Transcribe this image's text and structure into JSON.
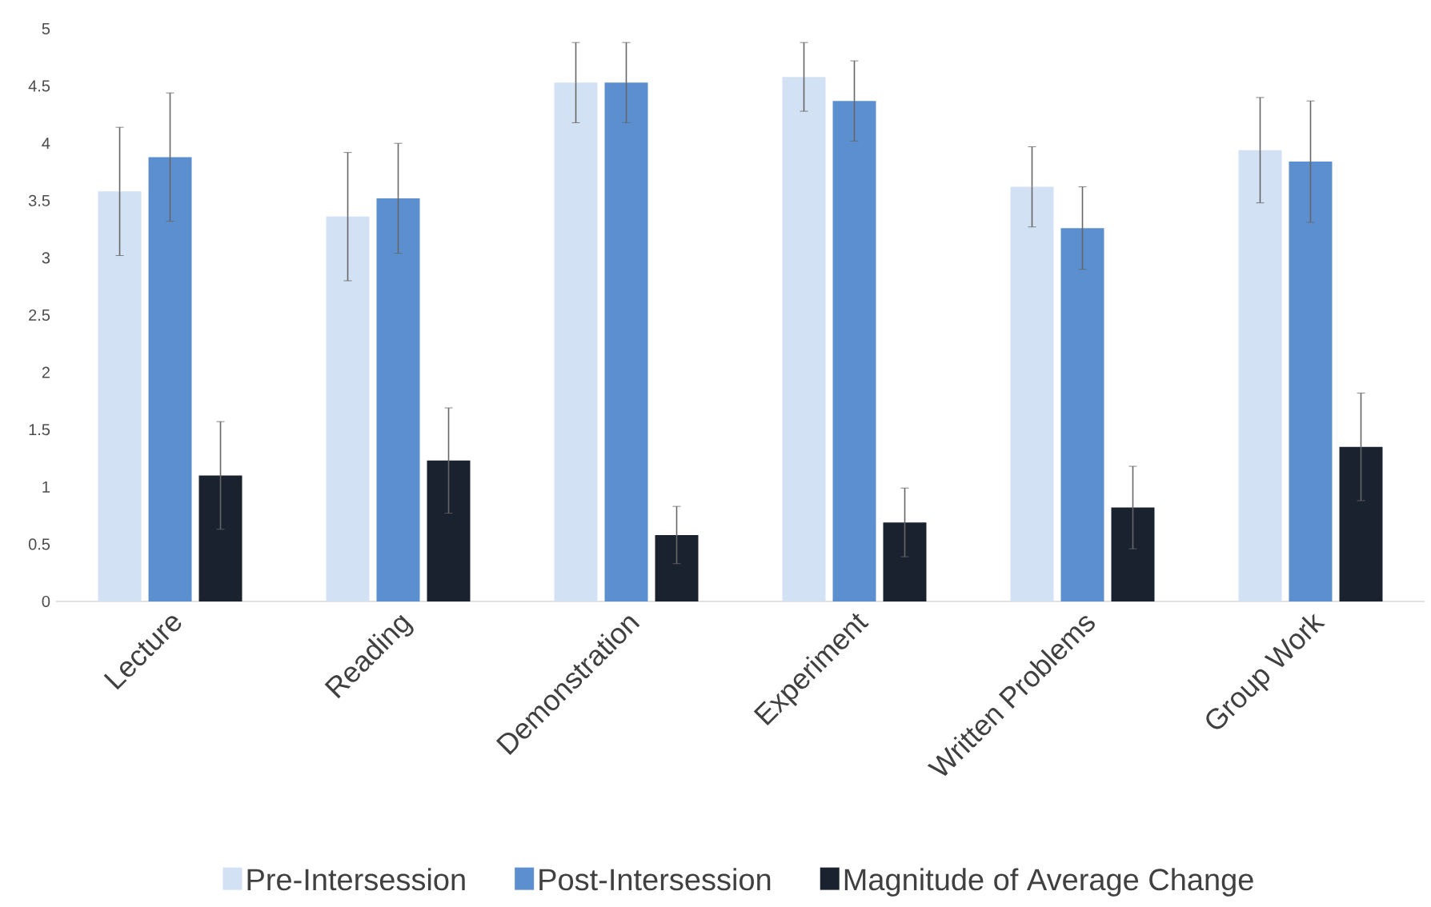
{
  "chart_data": {
    "type": "bar",
    "categories": [
      "Lecture",
      "Reading",
      "Demonstration",
      "Experiment",
      "Written Problems",
      "Group Work"
    ],
    "series": [
      {
        "name": "Pre-Intersession",
        "color": "#d3e1f4",
        "values": [
          3.58,
          3.36,
          4.53,
          4.58,
          3.62,
          3.94
        ],
        "errors": [
          0.56,
          0.56,
          0.35,
          0.3,
          0.35,
          0.46
        ]
      },
      {
        "name": "Post-Intersession",
        "color": "#5b8fcf",
        "values": [
          3.88,
          3.52,
          4.53,
          4.37,
          3.26,
          3.84
        ],
        "errors": [
          0.56,
          0.48,
          0.35,
          0.35,
          0.36,
          0.53
        ]
      },
      {
        "name": "Magnitude of Average Change",
        "color": "#1a2230",
        "values": [
          1.1,
          1.23,
          0.58,
          0.69,
          0.82,
          1.35
        ],
        "errors": [
          0.47,
          0.46,
          0.25,
          0.3,
          0.36,
          0.47
        ]
      }
    ],
    "ylim": [
      0,
      5
    ],
    "yticks": [
      0,
      0.5,
      1,
      1.5,
      2,
      2.5,
      3,
      3.5,
      4,
      4.5,
      5
    ],
    "grid": false,
    "legend": "bottom"
  }
}
